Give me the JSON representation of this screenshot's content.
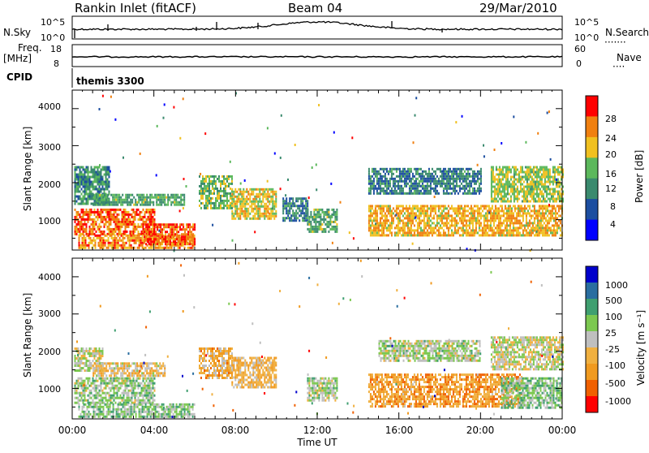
{
  "header": {
    "title": "Rankin Inlet (fitACF)",
    "beam": "Beam 04",
    "date": "29/Mar/2010"
  },
  "noise_panel": {
    "left_label": "N.Sky",
    "right_label": "N.Search",
    "left_ticks": [
      "10^5",
      "10^0"
    ],
    "right_ticks": [
      "10^5",
      "10^0"
    ]
  },
  "freq_panel": {
    "left_label_top": "Freq.",
    "left_label_unit": "[MHz]",
    "right_label": "Nave",
    "left_ticks": [
      "18",
      "8"
    ],
    "right_ticks": [
      "60",
      "0"
    ]
  },
  "cpid_panel": {
    "label": "CPID",
    "program": "themis 3300"
  },
  "power_panel": {
    "ylabel": "Slant Range [km]",
    "yticks": [
      "4000",
      "3000",
      "2000",
      "1000"
    ],
    "colorbar_label": "Power [dB]",
    "colorbar_ticks": [
      "28",
      "24",
      "20",
      "16",
      "12",
      "8",
      "4"
    ]
  },
  "velocity_panel": {
    "ylabel": "Slant Range [km]",
    "yticks": [
      "4000",
      "3000",
      "2000",
      "1000"
    ],
    "colorbar_label": "Velocity [m s⁻¹]",
    "colorbar_ticks": [
      "1000",
      "500",
      "100",
      "25",
      "-25",
      "-100",
      "-500",
      "-1000"
    ]
  },
  "xaxis": {
    "label": "Time UT",
    "ticks": [
      "00:00",
      "04:00",
      "08:00",
      "12:00",
      "16:00",
      "20:00",
      "00:00"
    ]
  },
  "chart_data": [
    {
      "type": "heatmap",
      "name": "power",
      "x_range_hours": [
        0,
        24
      ],
      "y_range_km": [
        180,
        4500
      ],
      "color_scale": [
        "#0000ff",
        "#1c4ea0",
        "#3a8a6e",
        "#5cb85c",
        "#f0c020",
        "#f08010",
        "#ff0000"
      ],
      "value_range_db": [
        0,
        32
      ],
      "regions": [
        {
          "t0": 0.1,
          "t1": 4.0,
          "r0": 600,
          "r1": 1300,
          "value": 26
        },
        {
          "t0": 0.3,
          "t1": 6.0,
          "r0": 250,
          "r1": 600,
          "value": 24
        },
        {
          "t0": 0.1,
          "t1": 1.8,
          "r0": 1400,
          "r1": 2450,
          "value": 12
        },
        {
          "t0": 1.0,
          "t1": 5.5,
          "r0": 1400,
          "r1": 1700,
          "value": 14
        },
        {
          "t0": 3.5,
          "t1": 6.0,
          "r0": 350,
          "r1": 900,
          "value": 27
        },
        {
          "t0": 6.2,
          "t1": 7.8,
          "r0": 1300,
          "r1": 2200,
          "value": 16
        },
        {
          "t0": 7.8,
          "t1": 10.0,
          "r0": 1000,
          "r1": 1850,
          "value": 20
        },
        {
          "t0": 10.3,
          "t1": 11.5,
          "r0": 1000,
          "r1": 1600,
          "value": 10
        },
        {
          "t0": 11.5,
          "t1": 13.0,
          "r0": 700,
          "r1": 1300,
          "value": 14
        },
        {
          "t0": 14.5,
          "t1": 24.0,
          "r0": 600,
          "r1": 1400,
          "value": 22
        },
        {
          "t0": 14.5,
          "t1": 20.0,
          "r0": 1700,
          "r1": 2400,
          "value": 10
        },
        {
          "t0": 20.5,
          "t1": 24.0,
          "r0": 1500,
          "r1": 2450,
          "value": 18
        }
      ]
    },
    {
      "type": "heatmap",
      "name": "velocity",
      "x_range_hours": [
        0,
        24
      ],
      "y_range_km": [
        180,
        4500
      ],
      "color_scale": [
        "#ff0000",
        "#f06000",
        "#f09a20",
        "#f0b040",
        "#bfbfbf",
        "#7cc850",
        "#3f9f70",
        "#2a6ea0",
        "#0000cc"
      ],
      "value_range_ms": [
        -1000,
        1000
      ],
      "regions": [
        {
          "t0": 0.1,
          "t1": 4.0,
          "r0": 600,
          "r1": 1300,
          "value": 150
        },
        {
          "t0": 0.3,
          "t1": 6.0,
          "r0": 250,
          "r1": 600,
          "value": 200
        },
        {
          "t0": 0.1,
          "t1": 1.5,
          "r0": 1500,
          "r1": 2100,
          "value": 0
        },
        {
          "t0": 1.0,
          "t1": 4.5,
          "r0": 1350,
          "r1": 1700,
          "value": -150
        },
        {
          "t0": 6.2,
          "t1": 7.8,
          "r0": 1300,
          "r1": 2100,
          "value": -300
        },
        {
          "t0": 7.8,
          "t1": 10.0,
          "r0": 1000,
          "r1": 1850,
          "value": -250
        },
        {
          "t0": 11.5,
          "t1": 13.0,
          "r0": 700,
          "r1": 1300,
          "value": 100
        },
        {
          "t0": 14.5,
          "t1": 22.0,
          "r0": 500,
          "r1": 1400,
          "value": -400
        },
        {
          "t0": 15.0,
          "t1": 20.0,
          "r0": 1750,
          "r1": 2300,
          "value": 80
        },
        {
          "t0": 20.5,
          "t1": 24.0,
          "r0": 1500,
          "r1": 2400,
          "value": 0
        },
        {
          "t0": 21.0,
          "t1": 24.0,
          "r0": 500,
          "r1": 1300,
          "value": 200
        }
      ]
    }
  ]
}
